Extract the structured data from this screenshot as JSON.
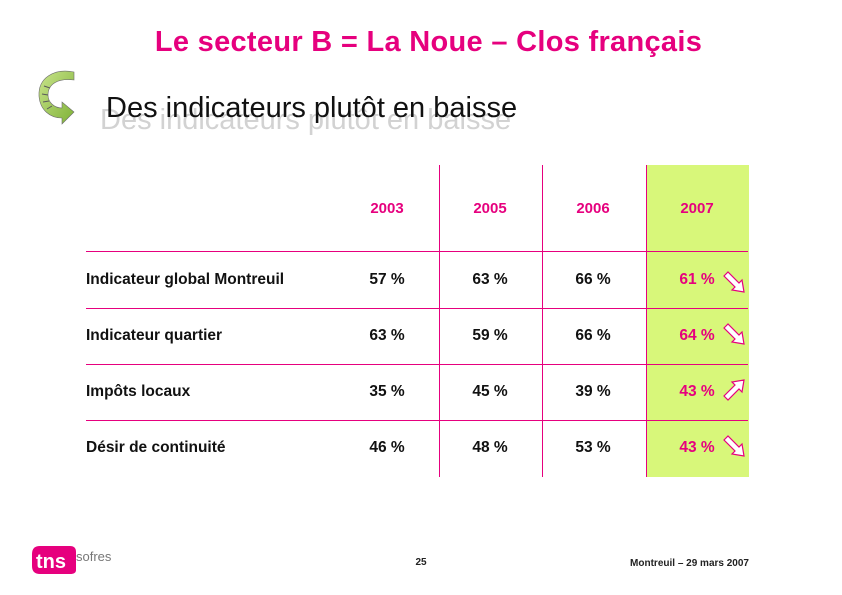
{
  "slide": {
    "title": "Le secteur B = La Noue – Clos français",
    "subtitle": "Des indicateurs plutôt en baisse"
  },
  "table": {
    "years": [
      "2003",
      "2005",
      "2006",
      "2007"
    ],
    "rows": [
      {
        "label": "Indicateur global Montreuil",
        "values": [
          "57 %",
          "63 %",
          "66 %",
          "61 %"
        ],
        "trend": "down"
      },
      {
        "label": "Indicateur quartier",
        "values": [
          "63 %",
          "59 %",
          "66 %",
          "64 %"
        ],
        "trend": "down"
      },
      {
        "label": "Impôts locaux",
        "values": [
          "35 %",
          "45 %",
          "39 %",
          "43 %"
        ],
        "trend": "up"
      },
      {
        "label": "Désir de continuité",
        "values": [
          "46 %",
          "48 %",
          "53 %",
          "43 %"
        ],
        "trend": "down"
      }
    ]
  },
  "footer": {
    "logo_main": "tns",
    "logo_sub": "sofres",
    "page_number": "25",
    "location_date": "Montreuil – 29 mars 2007"
  },
  "colors": {
    "accent": "#e6007e",
    "highlight": "#d8f77a",
    "arrow_green": "#8cc63f"
  },
  "icons": {
    "decorative": "curved-arrow-icon",
    "trend_down": "arrow-down-right-icon",
    "trend_up": "arrow-up-right-icon"
  }
}
